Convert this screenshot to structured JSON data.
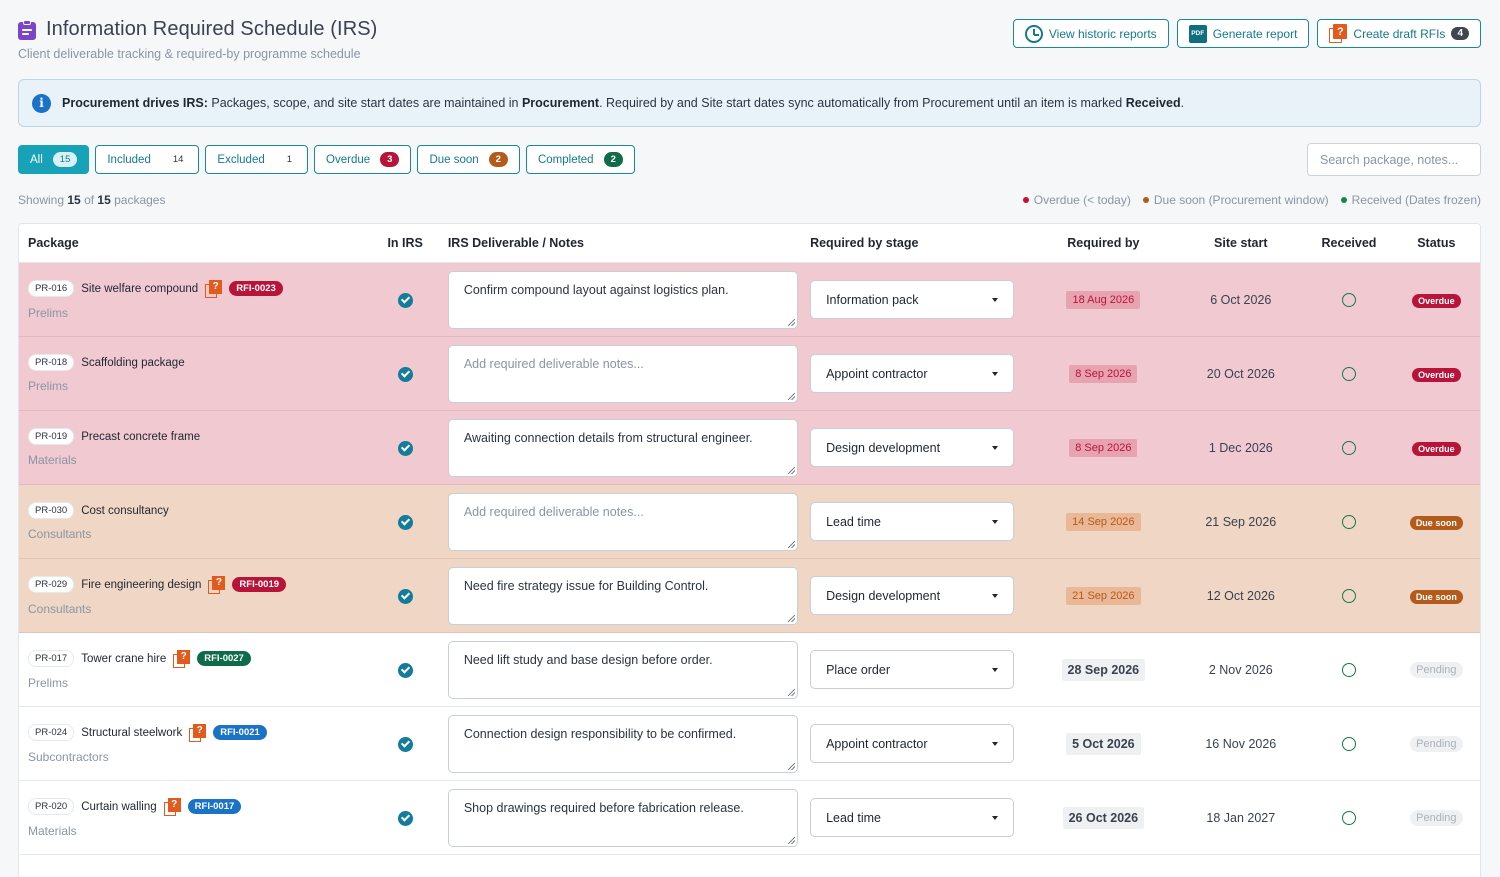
{
  "header": {
    "title": "Information Required Schedule (IRS)",
    "subtitle": "Client deliverable tracking & required-by programme schedule"
  },
  "actions": {
    "historic": "View historic reports",
    "generate": "Generate report",
    "pdf_icon_text": "PDF",
    "draft": "Create draft RFIs",
    "draft_count": "4"
  },
  "banner": {
    "lead": "Procurement drives IRS:",
    "text1": " Packages, scope, and site start dates are maintained in ",
    "bold1": "Procurement",
    "text2": ". Required by and Site start dates sync automatically from Procurement until an item is marked ",
    "bold2": "Received",
    "text3": "."
  },
  "filters": [
    {
      "label": "All",
      "count": "15"
    },
    {
      "label": "Included",
      "count": "14"
    },
    {
      "label": "Excluded",
      "count": "1"
    },
    {
      "label": "Overdue",
      "count": "3"
    },
    {
      "label": "Due soon",
      "count": "2"
    },
    {
      "label": "Completed",
      "count": "2"
    }
  ],
  "search": {
    "placeholder": "Search package, notes..."
  },
  "showing": {
    "prefix": "Showing ",
    "shown": "15",
    "mid": " of ",
    "total": "15",
    "suffix": " packages"
  },
  "legend": [
    {
      "label": "Overdue (< today)",
      "color": "#c8102e"
    },
    {
      "label": "Due soon (Procurement window)",
      "color": "#b45a1a"
    },
    {
      "label": "Received (Dates frozen)",
      "color": "#0f8a4a"
    }
  ],
  "columns": {
    "package": "Package",
    "in_irs": "In IRS",
    "notes": "IRS Deliverable / Notes",
    "stage": "Required by stage",
    "required": "Required by",
    "site": "Site start",
    "received": "Received",
    "status": "Status"
  },
  "notes_placeholder": "Add required deliverable notes...",
  "rows": [
    {
      "id": "PR-016",
      "name": "Site welfare compound",
      "category": "Prelims",
      "rfi": "RFI-0023",
      "rfi_color": "red",
      "notes": "Confirm compound layout against logistics plan.",
      "stage": "Information pack",
      "required": "18 Aug 2026",
      "site": "6 Oct 2026",
      "status": "Overdue",
      "state": "overdue"
    },
    {
      "id": "PR-018",
      "name": "Scaffolding package",
      "category": "Prelims",
      "rfi": "",
      "rfi_color": "",
      "notes": "",
      "stage": "Appoint contractor",
      "required": "8 Sep 2026",
      "site": "20 Oct 2026",
      "status": "Overdue",
      "state": "overdue"
    },
    {
      "id": "PR-019",
      "name": "Precast concrete frame",
      "category": "Materials",
      "rfi": "",
      "rfi_color": "",
      "notes": "Awaiting connection details from structural engineer.",
      "stage": "Design development",
      "required": "8 Sep 2026",
      "site": "1 Dec 2026",
      "status": "Overdue",
      "state": "overdue"
    },
    {
      "id": "PR-030",
      "name": "Cost consultancy",
      "category": "Consultants",
      "rfi": "",
      "rfi_color": "",
      "notes": "",
      "stage": "Lead time",
      "required": "14 Sep 2026",
      "site": "21 Sep 2026",
      "status": "Due soon",
      "state": "duesoon"
    },
    {
      "id": "PR-029",
      "name": "Fire engineering design",
      "category": "Consultants",
      "rfi": "RFI-0019",
      "rfi_color": "red",
      "notes": "Need fire strategy issue for Building Control.",
      "stage": "Design development",
      "required": "21 Sep 2026",
      "site": "12 Oct 2026",
      "status": "Due soon",
      "state": "duesoon"
    },
    {
      "id": "PR-017",
      "name": "Tower crane hire",
      "category": "Prelims",
      "rfi": "RFI-0027",
      "rfi_color": "green",
      "notes": "Need lift study and base design before order.",
      "stage": "Place order",
      "required": "28 Sep 2026",
      "site": "2 Nov 2026",
      "status": "Pending",
      "state": "normal"
    },
    {
      "id": "PR-024",
      "name": "Structural steelwork",
      "category": "Subcontractors",
      "rfi": "RFI-0021",
      "rfi_color": "blue",
      "notes": "Connection design responsibility to be confirmed.",
      "stage": "Appoint contractor",
      "required": "5 Oct 2026",
      "site": "16 Nov 2026",
      "status": "Pending",
      "state": "normal"
    },
    {
      "id": "PR-020",
      "name": "Curtain walling",
      "category": "Materials",
      "rfi": "RFI-0017",
      "rfi_color": "blue",
      "notes": "Shop drawings required before fabrication release.",
      "stage": "Lead time",
      "required": "26 Oct 2026",
      "site": "18 Jan 2027",
      "status": "Pending",
      "state": "normal"
    }
  ]
}
